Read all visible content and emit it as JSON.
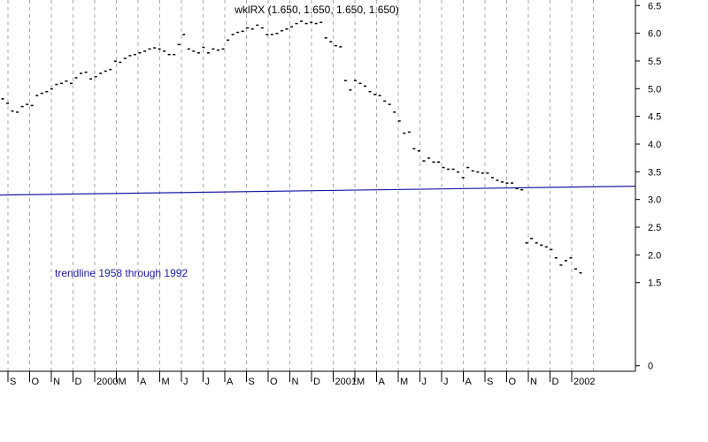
{
  "chart_data": {
    "type": "line",
    "title": "wklRX (1.650, 1.650, 1.650, 1.650)",
    "xlabel": "",
    "ylabel": "",
    "ylim": [
      -0.1,
      6.6
    ],
    "yticks": [
      "6.5",
      "6.0",
      "5.5",
      "5.0",
      "4.5",
      "4.0",
      "3.5",
      "3.0",
      "2.5",
      "2.0",
      "1.5",
      "0"
    ],
    "grid": "vertical-dashed",
    "x_labels": [
      "S",
      "O",
      "N",
      "D",
      "2000",
      "M",
      "A",
      "M",
      "J",
      "J",
      "A",
      "S",
      "O",
      "N",
      "D",
      "2001",
      "M",
      "A",
      "M",
      "J",
      "J",
      "A",
      "S",
      "O",
      "N",
      "D",
      "2002"
    ],
    "colors": {
      "price": "#000000",
      "trendline": "#1a1aa6",
      "grid": "#aaaaaa"
    },
    "annotations": [
      {
        "text": "trendline 1958 through 1992"
      }
    ],
    "series": [
      {
        "style": "dots",
        "values": [
          4.82,
          4.74,
          4.6,
          4.58,
          4.68,
          4.72,
          4.7,
          4.88,
          4.92,
          4.95,
          5.0,
          5.08,
          5.1,
          5.14,
          5.1,
          5.2,
          5.28,
          5.3,
          5.18,
          5.22,
          5.28,
          5.32,
          5.35,
          5.5,
          5.48,
          5.55,
          5.6,
          5.62,
          5.65,
          5.68,
          5.72,
          5.74,
          5.72,
          5.68,
          5.62,
          5.62,
          5.8,
          5.98,
          5.72,
          5.68,
          5.65,
          5.75,
          5.65,
          5.72,
          5.7,
          5.72,
          5.88,
          5.98,
          6.02,
          6.04,
          6.1,
          6.08,
          6.15,
          6.1,
          5.98,
          5.98,
          6.0,
          6.05,
          6.08,
          6.12,
          6.18,
          6.22,
          6.18,
          6.2,
          6.18,
          6.2,
          5.92,
          5.85,
          5.78,
          5.76,
          5.15,
          4.98,
          5.15,
          5.1,
          5.05,
          4.95,
          4.9,
          4.88,
          4.78,
          4.72,
          4.58,
          4.42,
          4.2,
          4.22,
          3.92,
          3.88,
          3.7,
          3.75,
          3.68,
          3.68,
          3.58,
          3.55,
          3.55,
          3.5,
          3.4,
          3.58,
          3.52,
          3.5,
          3.48,
          3.48,
          3.4,
          3.35,
          3.32,
          3.3,
          3.3,
          3.2,
          3.18,
          2.22,
          2.3,
          2.22,
          2.18,
          2.15,
          2.1,
          1.95,
          1.82,
          1.9,
          1.95,
          1.75,
          1.68
        ]
      },
      {
        "style": "line",
        "values": [
          3.08,
          3.24
        ]
      }
    ]
  }
}
